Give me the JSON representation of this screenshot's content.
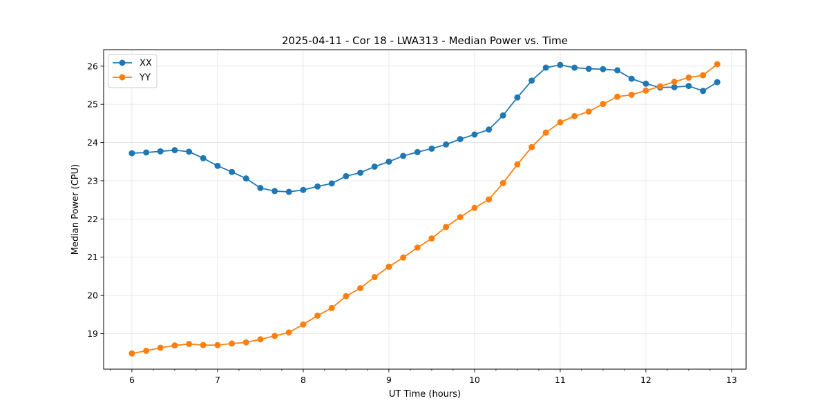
{
  "chart_data": {
    "type": "line",
    "title": "2025-04-11 - Cor 18 - LWA313 - Median Power vs. Time",
    "xlabel": "UT Time (hours)",
    "ylabel": "Median Power (CPU)",
    "xlim": [
      5.67,
      13.17
    ],
    "ylim": [
      18.07,
      26.43
    ],
    "xticks": [
      "6",
      "7",
      "8",
      "9",
      "10",
      "11",
      "12",
      "13"
    ],
    "yticks": [
      "19",
      "20",
      "21",
      "22",
      "23",
      "24",
      "25",
      "26"
    ],
    "grid": true,
    "legend_position": "top-left",
    "x": [
      6.0,
      6.167,
      6.333,
      6.5,
      6.667,
      6.833,
      7.0,
      7.167,
      7.333,
      7.5,
      7.667,
      7.833,
      8.0,
      8.167,
      8.333,
      8.5,
      8.667,
      8.833,
      9.0,
      9.167,
      9.333,
      9.5,
      9.667,
      9.833,
      10.0,
      10.167,
      10.333,
      10.5,
      10.667,
      10.833,
      11.0,
      11.167,
      11.333,
      11.5,
      11.667,
      11.833,
      12.0,
      12.167,
      12.333,
      12.5,
      12.667,
      12.833
    ],
    "series": [
      {
        "name": "XX",
        "color": "#1f77b4",
        "values": [
          23.72,
          23.74,
          23.77,
          23.8,
          23.76,
          23.59,
          23.39,
          23.23,
          23.06,
          22.81,
          22.73,
          22.71,
          22.76,
          22.85,
          22.93,
          23.12,
          23.21,
          23.37,
          23.5,
          23.65,
          23.75,
          23.84,
          23.95,
          24.09,
          24.21,
          24.34,
          24.71,
          25.18,
          25.62,
          25.96,
          26.03,
          25.96,
          25.93,
          25.92,
          25.89,
          25.67,
          25.54,
          25.44,
          25.45,
          25.48,
          25.35,
          25.58
        ]
      },
      {
        "name": "YY",
        "color": "#ff7f0e",
        "values": [
          18.48,
          18.55,
          18.63,
          18.69,
          18.73,
          18.7,
          18.7,
          18.74,
          18.77,
          18.85,
          18.94,
          19.03,
          19.24,
          19.47,
          19.67,
          19.98,
          20.19,
          20.48,
          20.75,
          20.99,
          21.25,
          21.49,
          21.79,
          22.05,
          22.29,
          22.51,
          22.94,
          23.43,
          23.88,
          24.26,
          24.53,
          24.69,
          24.81,
          25.01,
          25.2,
          25.25,
          25.36,
          25.47,
          25.59,
          25.7,
          25.76,
          26.05
        ]
      }
    ]
  }
}
